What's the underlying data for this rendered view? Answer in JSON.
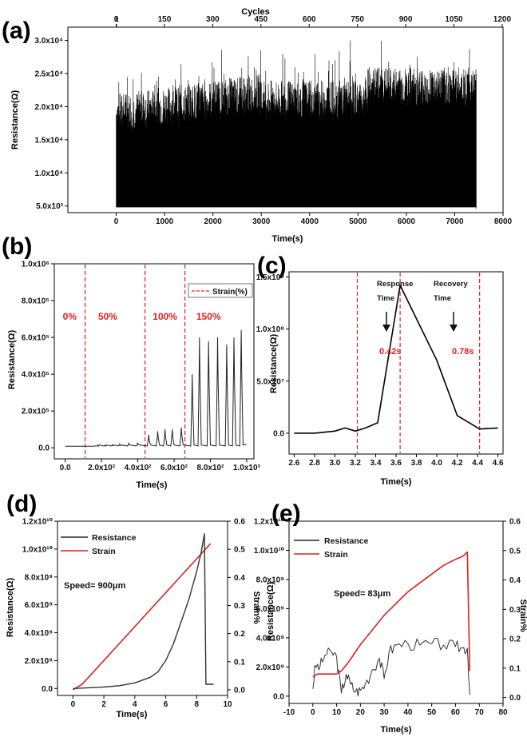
{
  "panels": {
    "a": {
      "letter": "(a)",
      "ylabel": "Resistance(Ω)",
      "xlabel": "Time(s)",
      "top_label": "Cycles",
      "x_ticks": [
        "0",
        "1000",
        "2000",
        "3000",
        "4000",
        "5000",
        "6000",
        "7000",
        "8000"
      ],
      "top_ticks": [
        "0",
        "1",
        "150",
        "300",
        "450",
        "600",
        "750",
        "900",
        "1050",
        "1200"
      ],
      "y_ticks": [
        "5.0x10³",
        "1.0x10⁴",
        "1.5x10⁴",
        "2.0x10⁴",
        "2.5x10⁴",
        "3.0x10⁴"
      ]
    },
    "b": {
      "letter": "(b)",
      "ylabel": "Resistance(Ω)",
      "xlabel": "Time(s)",
      "legend": "Strain(%)",
      "x_ticks": [
        "0.0",
        "2.0x10²",
        "4.0x10²",
        "6.0x10²",
        "8.0x10²",
        "1.0x10³"
      ],
      "y_ticks": [
        "0.0",
        "2.0x10⁵",
        "4.0x10⁵",
        "6.0x10⁵",
        "8.0x10⁵",
        "1.0x10⁶"
      ],
      "regions": [
        "0%",
        "50%",
        "100%",
        "150%"
      ]
    },
    "c": {
      "letter": "(c)",
      "ylabel": "Resistance(Ω)",
      "xlabel": "Time(s)",
      "x_ticks": [
        "2.6",
        "2.8",
        "3.0",
        "3.2",
        "3.4",
        "3.6",
        "3.8",
        "4.0",
        "4.2",
        "4.4",
        "4.6"
      ],
      "y_ticks": [
        "0.0",
        "5.0x10⁷",
        "1.0x10⁸",
        "1.5x10⁸"
      ],
      "response_label_1": "Response",
      "response_label_2": "Time",
      "recovery_label_1": "Recovery",
      "recovery_label_2": "Time",
      "response_value": "0.42s",
      "recovery_value": "0.78s"
    },
    "d": {
      "letter": "(d)",
      "ylabel": "Resistance(Ω)",
      "y2label": "Strain%",
      "xlabel": "Time(s)",
      "legend_resistance": "Resistance",
      "legend_strain": "Strain",
      "speed": "Speed= 900μm",
      "x_ticks": [
        "0",
        "2",
        "4",
        "6",
        "8",
        "10"
      ],
      "y_ticks": [
        "0.0",
        "2.0x10⁹",
        "4.0x10⁹",
        "6.0x10⁹",
        "8.0x10⁹",
        "1.0x10¹⁰",
        "1.2x10¹⁰"
      ],
      "y2_ticks": [
        "0.0",
        "0.1",
        "0.2",
        "0.3",
        "0.4",
        "0.5",
        "0.6"
      ]
    },
    "e": {
      "letter": "(e)",
      "ylabel": "Resistance(Ω)",
      "y2label": "Strain%",
      "xlabel": "Time(s)",
      "legend_resistance": "Resistance",
      "legend_strain": "Strain",
      "speed": "Speed= 83μm",
      "x_ticks": [
        "-10",
        "0",
        "10",
        "20",
        "30",
        "40",
        "50",
        "60",
        "70",
        "80"
      ],
      "y_ticks": [
        "0.0",
        "2.0x10⁹",
        "4.0x10⁹",
        "6.0x10⁹",
        "8.0x10⁹",
        "1.0x10¹⁰",
        "1.2x10¹⁰"
      ],
      "y2_ticks": [
        "0.0",
        "0.1",
        "0.2",
        "0.3",
        "0.4",
        "0.5",
        "0.6"
      ]
    }
  },
  "colors": {
    "resistance": "#222222",
    "strain": "#e02020",
    "dashed": "#e02020"
  },
  "chart_data": [
    {
      "panel": "a",
      "type": "line",
      "xlabel": "Time(s)",
      "ylabel": "Resistance(Ω)",
      "xlim": [
        -1000,
        8000
      ],
      "ylim": [
        4000,
        32000
      ],
      "baseline": 4800,
      "peak_range": [
        12000,
        30000
      ],
      "time_end": 7450,
      "cycles_end": 1120
    },
    {
      "panel": "b",
      "type": "line",
      "xlabel": "Time(s)",
      "ylabel": "Resistance(Ω)",
      "xlim": [
        -60,
        1040
      ],
      "ylim": [
        -60000,
        1000000
      ],
      "strain_boundaries": [
        110,
        440,
        660
      ],
      "series": [
        {
          "peaks_x": [
            180,
            220,
            260,
            300,
            350,
            400,
            460,
            510,
            550,
            590,
            640,
            700,
            740,
            790,
            840,
            890,
            930,
            970
          ],
          "peaks_y": [
            15000,
            15000,
            17000,
            20000,
            25000,
            28000,
            70000,
            90000,
            100000,
            100000,
            110000,
            400000,
            600000,
            580000,
            600000,
            560000,
            600000,
            640000
          ]
        }
      ]
    },
    {
      "panel": "c",
      "type": "line",
      "xlabel": "Time(s)",
      "ylabel": "Resistance(Ω)",
      "xlim": [
        2.55,
        4.65
      ],
      "ylim": [
        -20000000,
        155000000
      ],
      "markers_x": [
        3.22,
        3.64,
        4.42
      ],
      "x": [
        2.6,
        2.8,
        3.0,
        3.1,
        3.2,
        3.3,
        3.42,
        3.64,
        3.8,
        4.0,
        4.2,
        4.42,
        4.6
      ],
      "y": [
        0,
        0,
        2000000,
        5000000,
        2000000,
        5000000,
        10000000,
        142000000,
        110000000,
        70000000,
        17000000,
        4000000,
        5000000
      ]
    },
    {
      "panel": "d",
      "type": "line",
      "xlabel": "Time(s)",
      "ylabel": "Resistance(Ω)",
      "y2label": "Strain%",
      "xlim": [
        -1,
        10
      ],
      "ylim": [
        -500000000,
        12000000000
      ],
      "y2lim": [
        -0.02,
        0.6
      ],
      "series": [
        {
          "name": "Resistance",
          "x": [
            0,
            1,
            2,
            3,
            4,
            5,
            5.5,
            6,
            6.5,
            7,
            7.5,
            8,
            8.3,
            8.5,
            8.6,
            9.1
          ],
          "y": [
            0,
            50000000,
            100000000,
            200000000,
            400000000,
            800000000,
            1200000000,
            2000000000,
            3200000000,
            4800000000,
            6400000000,
            8400000000,
            9800000000,
            11100000000,
            300000000,
            300000000
          ]
        },
        {
          "name": "Strain",
          "x": [
            0,
            0.6,
            8.9
          ],
          "y": [
            0,
            0.02,
            0.52
          ]
        }
      ]
    },
    {
      "panel": "e",
      "type": "line",
      "xlabel": "Time(s)",
      "ylabel": "Resistance(Ω)",
      "y2label": "Strain%",
      "xlim": [
        -10,
        80
      ],
      "ylim": [
        -500000000,
        12000000000
      ],
      "y2lim": [
        -0.02,
        0.6
      ],
      "series": [
        {
          "name": "Resistance",
          "x": [
            0,
            1,
            3,
            5,
            8,
            10,
            12,
            14,
            16,
            18,
            20,
            22,
            25,
            28,
            30,
            32,
            35,
            40,
            45,
            50,
            55,
            60,
            63,
            65,
            66
          ],
          "y": [
            500000000,
            2100000000,
            2000000000,
            2800000000,
            3000000000,
            2700000000,
            200000000,
            1500000000,
            800000000,
            300000000,
            400000000,
            800000000,
            1800000000,
            2600000000,
            1200000000,
            3000000000,
            3500000000,
            3600000000,
            3500000000,
            3600000000,
            3500000000,
            3400000000,
            3300000000,
            3300000000,
            100000000
          ]
        },
        {
          "name": "Strain",
          "x": [
            0,
            2,
            10,
            12,
            15,
            20,
            25,
            30,
            35,
            40,
            45,
            50,
            55,
            60,
            63,
            65,
            66
          ],
          "y": [
            0.07,
            0.08,
            0.08,
            0.09,
            0.12,
            0.18,
            0.23,
            0.28,
            0.32,
            0.36,
            0.39,
            0.42,
            0.45,
            0.47,
            0.48,
            0.495,
            0.09
          ]
        }
      ]
    }
  ]
}
